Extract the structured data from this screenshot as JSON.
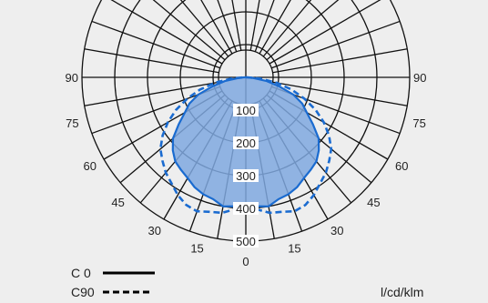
{
  "chart_data": {
    "type": "polar",
    "title": "",
    "unit": "l/cd/klm",
    "radial_ticks": [
      "100",
      "200",
      "300",
      "400",
      "500"
    ],
    "radial_values": [
      100,
      200,
      300,
      400,
      500
    ],
    "radial_max": 500,
    "angle_labels_right": [
      "0",
      "15",
      "30",
      "45",
      "60",
      "75",
      "90"
    ],
    "angle_labels_left": [
      "15",
      "30",
      "45",
      "60",
      "75",
      "90"
    ],
    "angle_step_deg": 15,
    "radial_line_step_deg": 10,
    "colors": {
      "fill": "#7fa8df",
      "line": "#1a6bd0",
      "grid": "#111111",
      "background": "#eeeeee"
    },
    "series": [
      {
        "name": "C 0",
        "style": "solid",
        "angles": [
          0,
          5,
          10,
          15,
          20,
          25,
          30,
          35,
          40,
          45,
          50,
          55,
          60,
          65,
          70,
          75,
          80,
          85,
          90
        ],
        "values": [
          395,
          395,
          400,
          385,
          380,
          370,
          355,
          345,
          335,
          315,
          290,
          250,
          215,
          190,
          155,
          105,
          65,
          22,
          5
        ]
      },
      {
        "name": "C90",
        "style": "dashed",
        "angles": [
          0,
          5,
          10,
          15,
          20,
          25,
          30,
          35,
          40,
          45,
          50,
          55,
          60,
          65,
          70,
          75,
          80,
          85,
          90
        ],
        "values": [
          400,
          405,
          420,
          425,
          435,
          430,
          415,
          395,
          380,
          360,
          340,
          310,
          275,
          235,
          190,
          145,
          95,
          45,
          5
        ]
      }
    ]
  },
  "legend": [
    {
      "label": "C 0",
      "style": "solid"
    },
    {
      "label": "C90",
      "style": "dashed"
    }
  ]
}
